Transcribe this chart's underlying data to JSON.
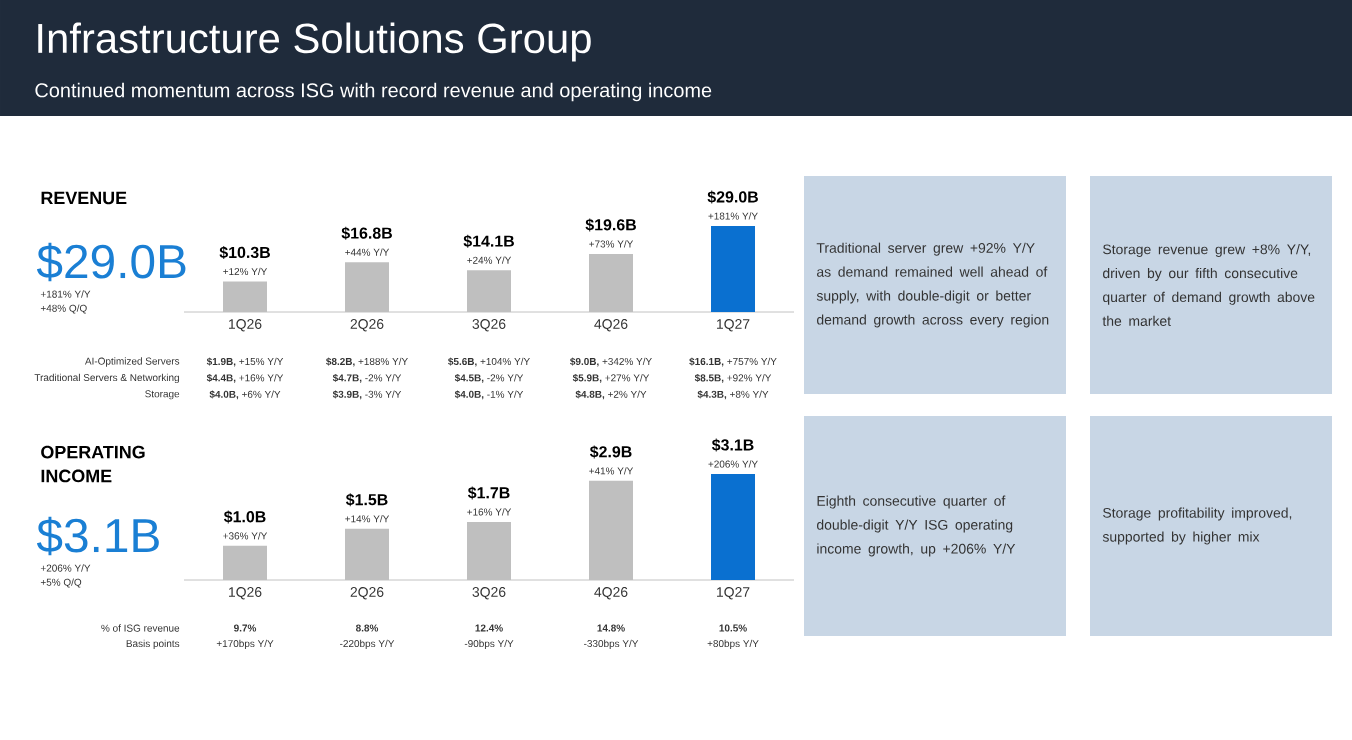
{
  "chart_data": [
    {
      "type": "other",
      "title": "Infrastructure Solutions Group",
      "subtitle": "Continued momentum across ISG with record revenue and operating income",
      "annotations": [
        "Traditional server grew +92% Y/Y as demand remained well ahead of supply, with double-digit or better demand growth across every region",
        "Storage revenue grew +8% Y/Y, driven by our fifth consecutive quarter of demand growth above the market",
        "Eighth consecutive quarter of double-digit Y/Y ISG operating income growth, up +206% Y/Y",
        "Storage profitability improved, supported by higher mix"
      ]
    },
    {
      "type": "bar",
      "title": "REVENUE",
      "categories": [
        "1Q26",
        "2Q26",
        "3Q26",
        "4Q26",
        "1Q27"
      ],
      "values": [
        10.3,
        16.8,
        14.1,
        19.6,
        29.0
      ],
      "colors": [
        "#bfbfbf",
        "#bfbfbf",
        "#bfbfbf",
        "#bfbfbf",
        "#0a70d0"
      ],
      "value_labels": [
        "$10.3B",
        "$16.8B",
        "$14.1B",
        "$19.6B",
        "$29.0B"
      ],
      "tick_labels": "x",
      "annotations": [
        "$29.0B",
        "+181% Y/Y",
        "+48% Q/Q",
        {
          "text": "+12% Y/Y",
          "x": "1Q26",
          "y": 10.3
        },
        {
          "text": "+44% Y/Y",
          "x": "2Q26",
          "y": 16.8
        },
        {
          "text": "+24% Y/Y",
          "x": "3Q26",
          "y": 14.1
        },
        {
          "text": "+73% Y/Y",
          "x": "4Q26",
          "y": 19.6
        },
        {
          "text": "+181% Y/Y",
          "x": "1Q27",
          "y": 29.0
        },
        "AI-Optimized Servers",
        "**$1.9B,** +15% Y/Y",
        "**$8.2B,** +188% Y/Y",
        "**$5.6B,** +104% Y/Y",
        "**$9.0B,** +342% Y/Y",
        "**$16.1B,** +757% Y/Y",
        "Traditional Servers & Networking",
        "**$4.4B,** +16% Y/Y",
        "**$4.7B,** -2% Y/Y",
        "**$4.5B,** -2% Y/Y",
        "**$5.9B,** +27% Y/Y",
        "**$8.5B,** +92% Y/Y",
        "Storage",
        "**$4.0B,** +6% Y/Y",
        "**$3.9B,** -3% Y/Y",
        "**$4.0B,** -1% Y/Y",
        "**$4.8B,** +2% Y/Y",
        "**$4.3B,** +8% Y/Y"
      ]
    },
    {
      "type": "bar",
      "title": "OPERATING INCOME",
      "categories": [
        "1Q26",
        "2Q26",
        "3Q26",
        "4Q26",
        "1Q27"
      ],
      "values": [
        1.0,
        1.5,
        1.7,
        2.9,
        3.1
      ],
      "colors": [
        "#bfbfbf",
        "#bfbfbf",
        "#bfbfbf",
        "#bfbfbf",
        "#0a70d0"
      ],
      "value_labels": [
        "$1.0B",
        "$1.5B",
        "$1.7B",
        "$2.9B",
        "$3.1B"
      ],
      "tick_labels": "x",
      "annotations": [
        "$3.1B",
        "+206% Y/Y",
        "+5% Q/Q",
        {
          "text": "+36% Y/Y",
          "x": "1Q26",
          "y": 1.0
        },
        {
          "text": "+14% Y/Y",
          "x": "2Q26",
          "y": 1.5
        },
        {
          "text": "+16% Y/Y",
          "x": "3Q26",
          "y": 1.7
        },
        {
          "text": "+41% Y/Y",
          "x": "4Q26",
          "y": 2.9
        },
        {
          "text": "+206% Y/Y",
          "x": "1Q27",
          "y": 3.1
        },
        "% of ISG revenue",
        "**9.7%**",
        "**8.8%**",
        "**12.4%**",
        "**14.8%**",
        "**10.5%**",
        "Basis points",
        "+170bps Y/Y",
        "-220bps Y/Y",
        "-90bps Y/Y",
        "-330bps Y/Y",
        "+80bps Y/Y"
      ]
    }
  ]
}
